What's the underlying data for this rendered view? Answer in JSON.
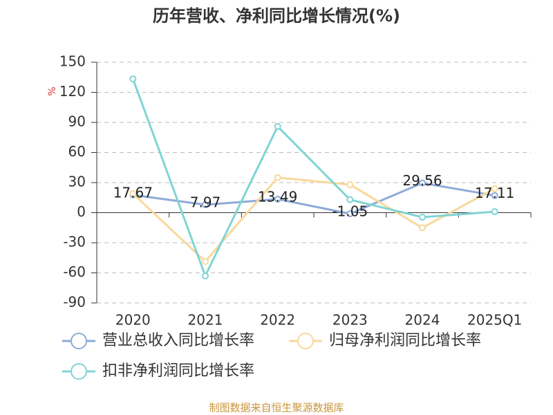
{
  "chart_data": {
    "type": "line",
    "title": "历年营收、净利同比增长情况(%)",
    "y_label": "%",
    "source": "制图数据来自恒生聚源数据库",
    "categories": [
      "2020",
      "2021",
      "2022",
      "2023",
      "2024",
      "2025Q1"
    ],
    "series": [
      {
        "name": "营业总收入同比增长率",
        "color": "#8eaad8",
        "values": [
          17.67,
          7.97,
          13.49,
          -1.05,
          29.56,
          17.11
        ],
        "show_labels": true
      },
      {
        "name": "归母净利润同比增长率",
        "color": "#f9d89a",
        "values": [
          19,
          -48.6,
          35,
          28,
          -15,
          24
        ]
      },
      {
        "name": "扣非净利润同比增长率",
        "color": "#80d4d4",
        "values": [
          133.4,
          -63,
          86,
          13,
          -4.5,
          1
        ]
      }
    ],
    "ylim": [
      -90,
      150
    ],
    "yticks": [
      -90,
      -60,
      -30,
      0,
      30,
      60,
      90,
      120,
      150
    ],
    "grid": true
  }
}
